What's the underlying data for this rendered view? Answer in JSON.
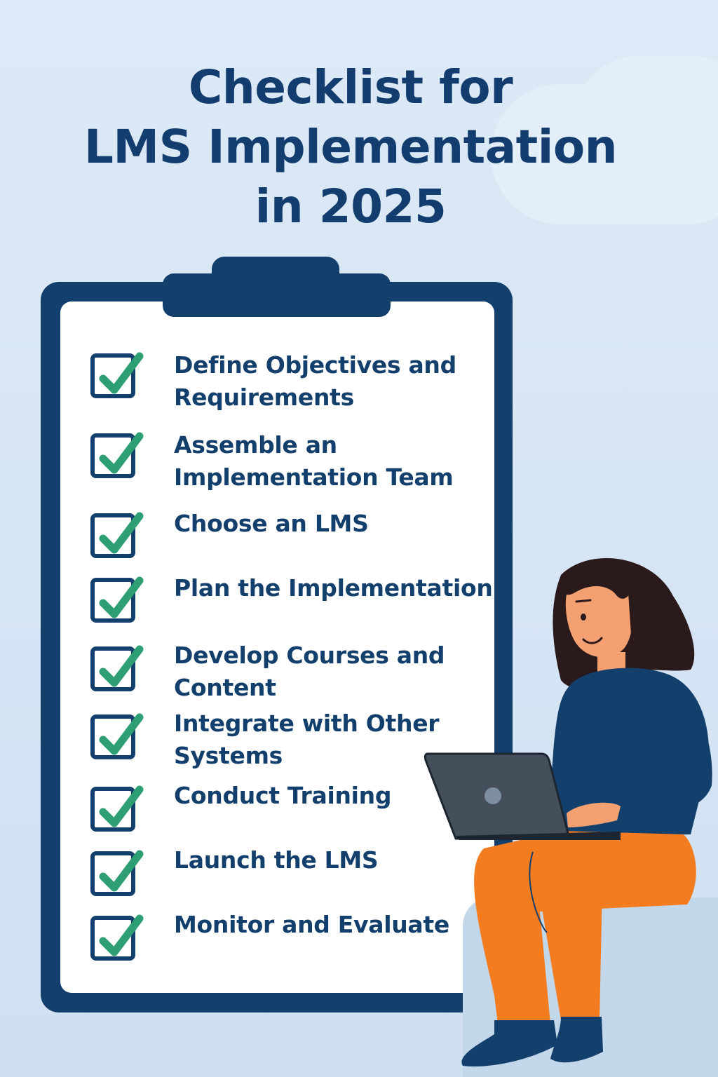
{
  "title": {
    "line1": "Checklist for",
    "line2": "LMS Implementation",
    "line3": "in 2025"
  },
  "colors": {
    "navy": "#133f6d",
    "check_green": "#2e9e73",
    "orange": "#f47c20",
    "background": "#dce9f6"
  },
  "checklist": {
    "icon": "check-icon",
    "items": [
      {
        "lines": [
          "Define Objectives and",
          "Requirements"
        ],
        "checked": true
      },
      {
        "lines": [
          "Assemble an",
          "Implementation Team"
        ],
        "checked": true
      },
      {
        "lines": [
          "Choose an LMS"
        ],
        "checked": true
      },
      {
        "lines": [
          "Plan the Implementation"
        ],
        "checked": true
      },
      {
        "lines": [
          "Develop Courses and",
          "Content"
        ],
        "checked": true
      },
      {
        "lines": [
          "Integrate with Other",
          "Systems"
        ],
        "checked": true
      },
      {
        "lines": [
          "Conduct Training"
        ],
        "checked": true
      },
      {
        "lines": [
          "Launch the LMS"
        ],
        "checked": true
      },
      {
        "lines": [
          "Monitor and Evaluate"
        ],
        "checked": true
      }
    ]
  },
  "illustration": {
    "subject": "woman-with-laptop"
  }
}
